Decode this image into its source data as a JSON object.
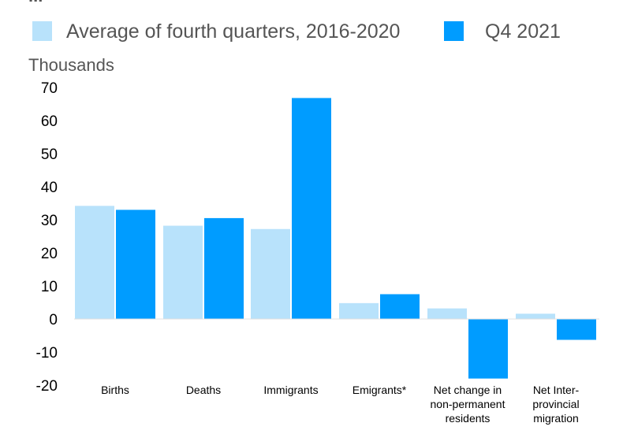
{
  "chart_data": {
    "type": "bar",
    "unit_label": "Thousands",
    "categories": [
      [
        "Births"
      ],
      [
        "Deaths"
      ],
      [
        "Immigrants"
      ],
      [
        "Emigrants*"
      ],
      [
        "Net change in",
        "non-permanent",
        "residents"
      ],
      [
        "Net Inter-",
        "provincial",
        "migration"
      ]
    ],
    "series": [
      {
        "name": "Average of fourth quarters, 2016-2020",
        "color": "#b8e2fb",
        "values": [
          34.2,
          28.2,
          27.2,
          4.8,
          3.2,
          1.6
        ]
      },
      {
        "name": "Q4 2021",
        "color": "#009cff",
        "values": [
          33.0,
          30.5,
          66.8,
          7.5,
          -18.0,
          -6.3
        ]
      }
    ],
    "ylim": [
      -20,
      70
    ],
    "yticks": [
      70,
      60,
      50,
      40,
      30,
      20,
      10,
      0,
      -10,
      -20
    ],
    "grid": false,
    "legend": "top",
    "title_fragment": "..."
  }
}
